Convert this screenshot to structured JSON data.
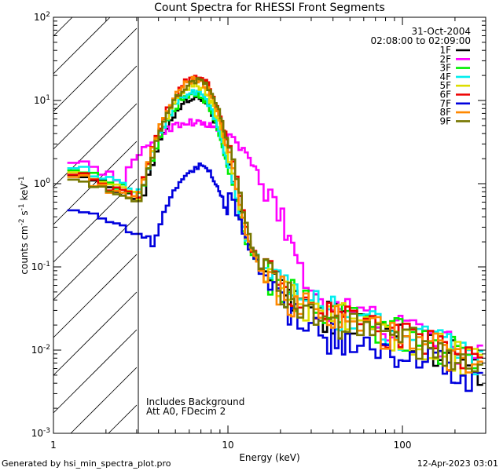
{
  "chart_data": {
    "type": "line",
    "title": "Count Spectra for RHESSI Front Segments",
    "xlabel": "Energy (keV)",
    "ylabel": {
      "base": "counts cm",
      "exp1": "-2",
      "mid1": " s",
      "exp2": "-1",
      "mid2": " keV",
      "exp3": "-1"
    },
    "x_scale": "log",
    "y_scale": "log",
    "xlim": [
      1,
      300
    ],
    "ylim": [
      0.001,
      100
    ],
    "x_ticks": [
      {
        "value": 1,
        "label": "1"
      },
      {
        "value": 10,
        "label": "10"
      },
      {
        "value": 100,
        "label": "100"
      }
    ],
    "y_ticks": [
      {
        "value": 0.001,
        "base": "10",
        "exp": "-3"
      },
      {
        "value": 0.01,
        "base": "10",
        "exp": "-2"
      },
      {
        "value": 0.1,
        "base": "10",
        "exp": "-1"
      },
      {
        "value": 1,
        "base": "10",
        "exp": "0"
      },
      {
        "value": 10,
        "base": "10",
        "exp": "1"
      },
      {
        "value": 100,
        "base": "10",
        "exp": "2"
      }
    ],
    "hatched_region_kev": [
      1,
      3
    ],
    "annotations": {
      "date": "31-Oct-2004",
      "time_range": "02:08:00 to 02:09:00",
      "background_note": "Includes Background",
      "attenuator_note": "Att A0, FDecim 2"
    },
    "footer_left": "Generated by hsi_min_spectra_plot.pro",
    "footer_right": "12-Apr-2023 03:01",
    "energy_edges_kev": [
      1.2,
      1.4,
      1.6,
      1.8,
      2.0,
      2.2,
      2.4,
      2.6,
      2.8,
      3.0,
      3.2,
      3.4,
      3.6,
      3.8,
      4.0,
      4.2,
      4.4,
      4.6,
      4.8,
      5.0,
      5.2,
      5.4,
      5.6,
      5.8,
      6.0,
      6.2,
      6.4,
      6.6,
      6.8,
      7.0,
      7.2,
      7.4,
      7.6,
      7.8,
      8.0,
      8.2,
      8.4,
      8.6,
      8.8,
      9.0,
      9.2,
      9.4,
      9.6,
      9.8,
      10.0,
      10.5,
      11,
      11.5,
      12,
      12.5,
      13,
      13.5,
      14,
      14.5,
      15,
      16,
      17,
      18,
      19,
      20,
      21,
      22,
      23,
      24,
      25,
      27,
      29,
      31,
      33,
      35,
      37,
      39,
      41,
      43,
      45,
      47,
      50,
      55,
      60,
      65,
      70,
      75,
      80,
      85,
      90,
      95,
      100,
      110,
      120,
      130,
      140,
      150,
      160,
      170,
      180,
      190,
      200,
      215,
      230,
      250,
      270,
      290
    ],
    "series": [
      {
        "name": "1F",
        "color": "#000000",
        "peak": 11,
        "peak_kev": 6.6,
        "low_start": 1.5
      },
      {
        "name": "2F",
        "color": "#ff00ff",
        "peak": 5.5,
        "peak_kev": 6.2,
        "low_start": 2.1
      },
      {
        "name": "3F",
        "color": "#00ee00",
        "peak": 12,
        "peak_kev": 6.5,
        "low_start": 1.7
      },
      {
        "name": "4F",
        "color": "#00eeee",
        "peak": 13,
        "peak_kev": 6.5,
        "low_start": 1.8
      },
      {
        "name": "5F",
        "color": "#dddd00",
        "peak": 15,
        "peak_kev": 6.6,
        "low_start": 1.6
      },
      {
        "name": "6F",
        "color": "#ee0000",
        "peak": 19,
        "peak_kev": 6.7,
        "low_start": 1.5
      },
      {
        "name": "7F",
        "color": "#0000dd",
        "peak": 1.6,
        "peak_kev": 7.0,
        "low_start": 0.55
      },
      {
        "name": "8F",
        "color": "#ff8800",
        "peak": 18,
        "peak_kev": 6.6,
        "low_start": 1.4
      },
      {
        "name": "9F",
        "color": "#777700",
        "peak": 17,
        "peak_kev": 6.8,
        "low_start": 1.3
      }
    ]
  }
}
